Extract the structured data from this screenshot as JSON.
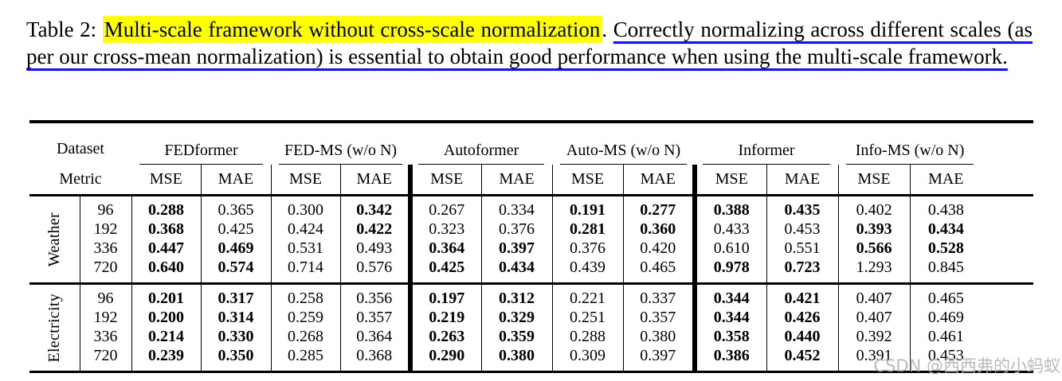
{
  "caption": {
    "prefix": "Table 2: ",
    "highlight": "Multi-scale framework without cross-scale normalization",
    "separator": ". ",
    "underlined": "Correctly normalizing across different scales (as per our cross-mean normalization) is essential to obtain good performance when using the multi-scale framework.",
    "highlight_color": "#ffff00",
    "underline_color": "#1212f0"
  },
  "table": {
    "corner_top": "Dataset",
    "corner_bottom": "Metric",
    "groups": [
      {
        "name": "FEDformer"
      },
      {
        "name": "FED-MS (w/o N)"
      },
      {
        "name": "Autoformer"
      },
      {
        "name": "Auto-MS (w/o N)"
      },
      {
        "name": "Informer"
      },
      {
        "name": "Info-MS (w/o N)"
      }
    ],
    "metric_cols": [
      "MSE",
      "MAE",
      "MSE",
      "MAE",
      "MSE",
      "MAE",
      "MSE",
      "MAE",
      "MSE",
      "MAE",
      "MSE",
      "MAE"
    ],
    "sections": [
      {
        "dataset": "Weather",
        "rows": [
          {
            "horizon": "96",
            "values": [
              "0.288",
              "0.365",
              "0.300",
              "0.342",
              "0.267",
              "0.334",
              "0.191",
              "0.277",
              "0.388",
              "0.435",
              "0.402",
              "0.438"
            ],
            "bold": [
              true,
              false,
              false,
              true,
              false,
              false,
              true,
              true,
              true,
              true,
              false,
              false
            ]
          },
          {
            "horizon": "192",
            "values": [
              "0.368",
              "0.425",
              "0.424",
              "0.422",
              "0.323",
              "0.376",
              "0.281",
              "0.360",
              "0.433",
              "0.453",
              "0.393",
              "0.434"
            ],
            "bold": [
              true,
              false,
              false,
              true,
              false,
              false,
              true,
              true,
              false,
              false,
              true,
              true
            ]
          },
          {
            "horizon": "336",
            "values": [
              "0.447",
              "0.469",
              "0.531",
              "0.493",
              "0.364",
              "0.397",
              "0.376",
              "0.420",
              "0.610",
              "0.551",
              "0.566",
              "0.528"
            ],
            "bold": [
              true,
              true,
              false,
              false,
              true,
              true,
              false,
              false,
              false,
              false,
              true,
              true
            ]
          },
          {
            "horizon": "720",
            "values": [
              "0.640",
              "0.574",
              "0.714",
              "0.576",
              "0.425",
              "0.434",
              "0.439",
              "0.465",
              "0.978",
              "0.723",
              "1.293",
              "0.845"
            ],
            "bold": [
              true,
              true,
              false,
              false,
              true,
              true,
              false,
              false,
              true,
              true,
              false,
              false
            ]
          }
        ]
      },
      {
        "dataset": "Electricity",
        "rows": [
          {
            "horizon": "96",
            "values": [
              "0.201",
              "0.317",
              "0.258",
              "0.356",
              "0.197",
              "0.312",
              "0.221",
              "0.337",
              "0.344",
              "0.421",
              "0.407",
              "0.465"
            ],
            "bold": [
              true,
              true,
              false,
              false,
              true,
              true,
              false,
              false,
              true,
              true,
              false,
              false
            ]
          },
          {
            "horizon": "192",
            "values": [
              "0.200",
              "0.314",
              "0.259",
              "0.357",
              "0.219",
              "0.329",
              "0.251",
              "0.357",
              "0.344",
              "0.426",
              "0.407",
              "0.469"
            ],
            "bold": [
              true,
              true,
              false,
              false,
              true,
              true,
              false,
              false,
              true,
              true,
              false,
              false
            ]
          },
          {
            "horizon": "336",
            "values": [
              "0.214",
              "0.330",
              "0.268",
              "0.364",
              "0.263",
              "0.359",
              "0.288",
              "0.380",
              "0.358",
              "0.440",
              "0.392",
              "0.461"
            ],
            "bold": [
              true,
              true,
              false,
              false,
              true,
              true,
              false,
              false,
              true,
              true,
              false,
              false
            ]
          },
          {
            "horizon": "720",
            "values": [
              "0.239",
              "0.350",
              "0.285",
              "0.368",
              "0.290",
              "0.380",
              "0.309",
              "0.397",
              "0.386",
              "0.452",
              "0.391",
              "0.453"
            ],
            "bold": [
              true,
              true,
              false,
              false,
              true,
              true,
              false,
              false,
              true,
              true,
              false,
              false
            ]
          }
        ]
      }
    ]
  },
  "watermark": {
    "text": "CSDN @西西弗的小蚂蚁",
    "color": "#b4b4b4"
  }
}
